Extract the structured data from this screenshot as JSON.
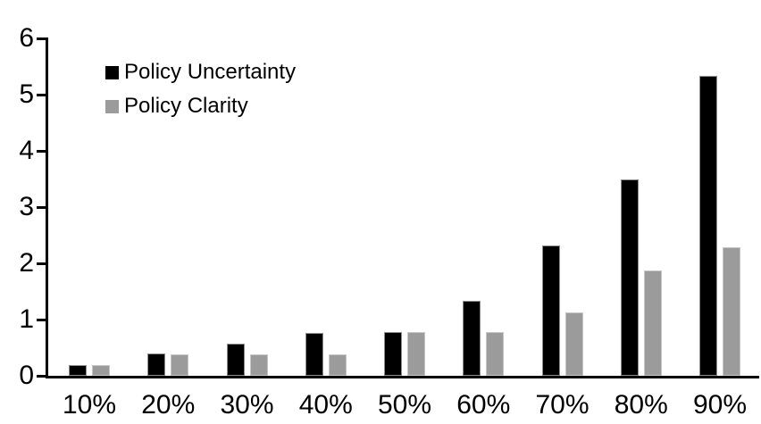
{
  "chart_data": {
    "type": "bar",
    "title": "",
    "categories": [
      "10%",
      "20%",
      "30%",
      "40%",
      "50%",
      "60%",
      "70%",
      "80%",
      "90%"
    ],
    "series": [
      {
        "name": "Policy Uncertainty",
        "color": "#000000",
        "values": [
          0.19,
          0.39,
          0.57,
          0.76,
          0.78,
          1.33,
          2.31,
          3.5,
          5.34
        ]
      },
      {
        "name": "Policy Clarity",
        "color": "#9b9b9b",
        "values": [
          0.19,
          0.38,
          0.38,
          0.38,
          0.77,
          0.77,
          1.13,
          1.88,
          2.28
        ]
      }
    ],
    "xlabel": "",
    "ylabel": "",
    "ylim": [
      0,
      6
    ],
    "yticks": [
      0,
      1,
      2,
      3,
      4,
      5,
      6
    ],
    "grid": false,
    "legend_position": "top-left-inside",
    "axis_color": "#000000",
    "background_color": "#ffffff"
  }
}
